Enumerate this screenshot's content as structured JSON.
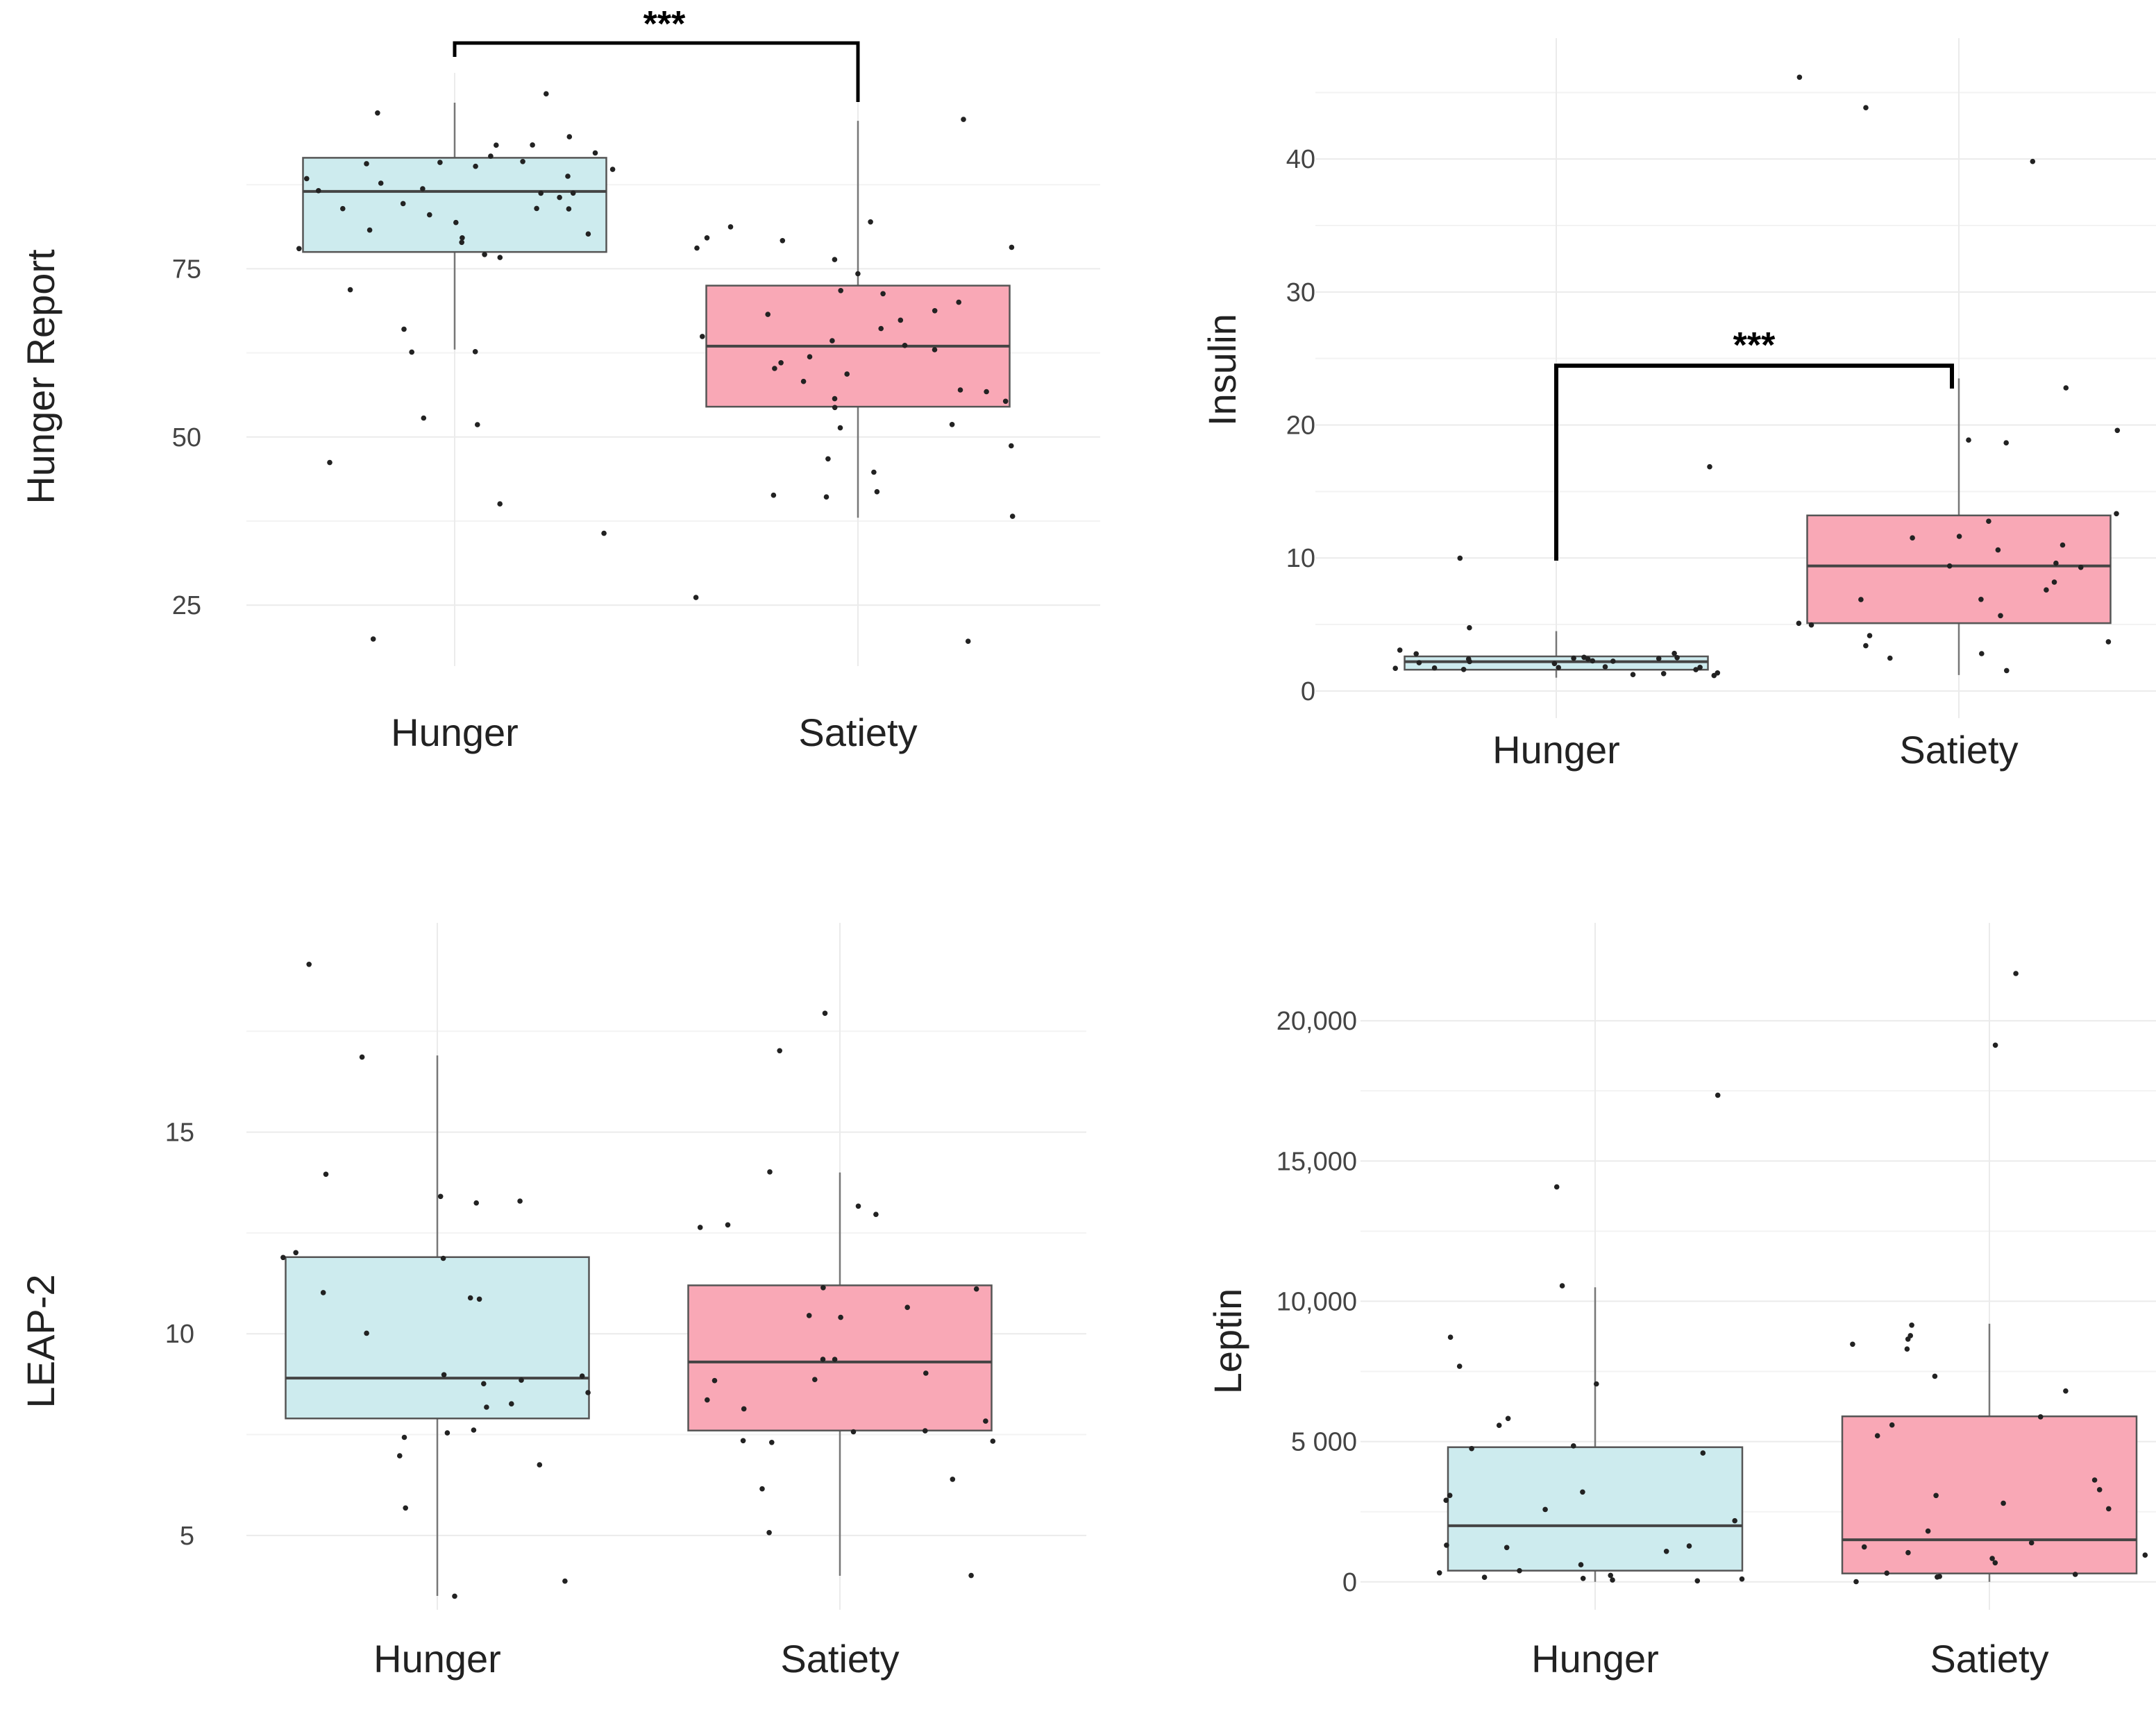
{
  "colors": {
    "hunger_fill": "#cdebee",
    "satiety_fill": "#f9a8b6",
    "box_stroke": "#555555",
    "grid": "#ebebeb",
    "point": "#222222",
    "bracket": "#000000"
  },
  "chart_data": [
    {
      "type": "box",
      "ylabel": "Hunger Report",
      "categories": [
        "Hunger",
        "Satiety"
      ],
      "ylim": [
        18,
        100
      ],
      "yticks": [
        25,
        50,
        75
      ],
      "ytick_labels": [
        "25",
        "50",
        "75"
      ],
      "boxes": [
        {
          "name": "Hunger",
          "min": 63,
          "q1": 77.5,
          "median": 86.5,
          "q3": 91.5,
          "max": 100
        },
        {
          "name": "Satiety",
          "min": 38,
          "q1": 54.5,
          "median": 63.5,
          "q3": 72.5,
          "max": 97
        }
      ],
      "points": [
        [
          93,
          90,
          91,
          88,
          86,
          84,
          82,
          80,
          79,
          78,
          77,
          92,
          87,
          89,
          85,
          83,
          81,
          90,
          91,
          86,
          84,
          88,
          93,
          92,
          91,
          86,
          84,
          80,
          72,
          66,
          63,
          63,
          53,
          52,
          46,
          40,
          36,
          20,
          98,
          101,
          95,
          77,
          87
        ],
        [
          97,
          82,
          80,
          81,
          79,
          78,
          76,
          78,
          74,
          71,
          69,
          67,
          65,
          64,
          62,
          60,
          59,
          58,
          57,
          57,
          56,
          55,
          54,
          52,
          51,
          49,
          47,
          45,
          42,
          41,
          41,
          38,
          26,
          20,
          64,
          63,
          61,
          66,
          68,
          70,
          72
        ]
      ],
      "significance": {
        "label": "***",
        "between": [
          "Hunger",
          "Satiety"
        ]
      }
    },
    {
      "type": "box",
      "ylabel": "Insulin",
      "categories": [
        "Hunger",
        "Satiety"
      ],
      "ylim": [
        -1,
        47
      ],
      "yticks": [
        0,
        10,
        20,
        30,
        40
      ],
      "ytick_labels": [
        "0",
        "10",
        "20",
        "30",
        "40"
      ],
      "boxes": [
        {
          "name": "Hunger",
          "min": 1.0,
          "q1": 1.6,
          "median": 2.2,
          "q3": 2.6,
          "max": 4.5
        },
        {
          "name": "Satiety",
          "min": 1.2,
          "q1": 5.1,
          "median": 9.4,
          "q3": 13.2,
          "max": 23.5
        }
      ],
      "points": [
        [
          16.8,
          10,
          4.8,
          3,
          2.8,
          2.6,
          2.5,
          2.4,
          2.3,
          2.2,
          2.1,
          2.0,
          1.9,
          1.8,
          1.7,
          1.6,
          1.5,
          1.4,
          1.3,
          1.2,
          2.5,
          2.3,
          1.9,
          2.1,
          2.4,
          1.6,
          1.5,
          2.8
        ],
        [
          46.2,
          44,
          40,
          23,
          19.8,
          19,
          18.8,
          13.2,
          12.8,
          11.8,
          11.5,
          11,
          10.6,
          9.8,
          9.5,
          9.4,
          8.2,
          7.4,
          7,
          6.8,
          5.8,
          5.2,
          4.8,
          4.2,
          3.8,
          3.2,
          2.8,
          2.5,
          1.5
        ]
      ],
      "significance": {
        "label": "***",
        "between": [
          "Hunger",
          "Satiety"
        ]
      }
    },
    {
      "type": "box",
      "ylabel": "LEAP-2",
      "categories": [
        "Hunger",
        "Satiety"
      ],
      "ylim": [
        3.5,
        19.5
      ],
      "yticks": [
        5,
        10,
        15
      ],
      "ytick_labels": [
        "5",
        "10",
        "15"
      ],
      "boxes": [
        {
          "name": "Hunger",
          "min": 3.5,
          "q1": 7.9,
          "median": 8.9,
          "q3": 11.9,
          "max": 16.9
        },
        {
          "name": "Satiety",
          "min": 4.0,
          "q1": 7.6,
          "median": 9.3,
          "q3": 11.2,
          "max": 14.0
        }
      ],
      "points": [
        [
          19.2,
          16.9,
          13.9,
          13.4,
          13.3,
          13.3,
          12.0,
          11.9,
          11.9,
          11.0,
          10.9,
          10.8,
          10.0,
          9.0,
          8.9,
          8.9,
          8.8,
          8.5,
          8.3,
          8.2,
          7.6,
          7.5,
          7.4,
          7.0,
          6.7,
          5.7,
          3.9,
          3.5
        ],
        [
          18.0,
          17.0,
          14.0,
          13.1,
          12.9,
          12.7,
          12.6,
          11.1,
          11.1,
          10.6,
          10.5,
          10.4,
          9.3,
          9.3,
          9.0,
          8.9,
          8.8,
          8.4,
          8.1,
          7.8,
          7.6,
          7.5,
          7.4,
          7.3,
          7.3,
          6.4,
          6.2,
          5.1,
          4.0
        ]
      ],
      "significance": null
    },
    {
      "type": "box",
      "ylabel": "Leptin",
      "categories": [
        "Hunger",
        "Satiety"
      ],
      "ylim": [
        -500,
        22500
      ],
      "yticks": [
        0,
        5000,
        10000,
        15000,
        20000
      ],
      "ytick_labels": [
        "0",
        "5 000",
        "10,000",
        "15,000",
        "20,000"
      ],
      "boxes": [
        {
          "name": "Hunger",
          "min": 0,
          "q1": 400,
          "median": 2000,
          "q3": 4800,
          "max": 10500
        },
        {
          "name": "Satiety",
          "min": 0,
          "q1": 300,
          "median": 1500,
          "q3": 5900,
          "max": 9200
        }
      ],
      "points": [
        [
          17300,
          14100,
          10500,
          8800,
          7600,
          7100,
          5800,
          5500,
          4900,
          4700,
          4500,
          3300,
          3100,
          2900,
          2600,
          2100,
          1400,
          1300,
          1200,
          400,
          300,
          300,
          200,
          200,
          200,
          100,
          100,
          1100,
          700
        ],
        [
          21700,
          19100,
          9200,
          8800,
          8700,
          8500,
          8300,
          7400,
          6800,
          5800,
          5500,
          5200,
          3600,
          3200,
          3100,
          2800,
          2700,
          1900,
          1300,
          1200,
          1100,
          900,
          800,
          700,
          300,
          200,
          200,
          100,
          100
        ]
      ],
      "significance": null
    }
  ]
}
